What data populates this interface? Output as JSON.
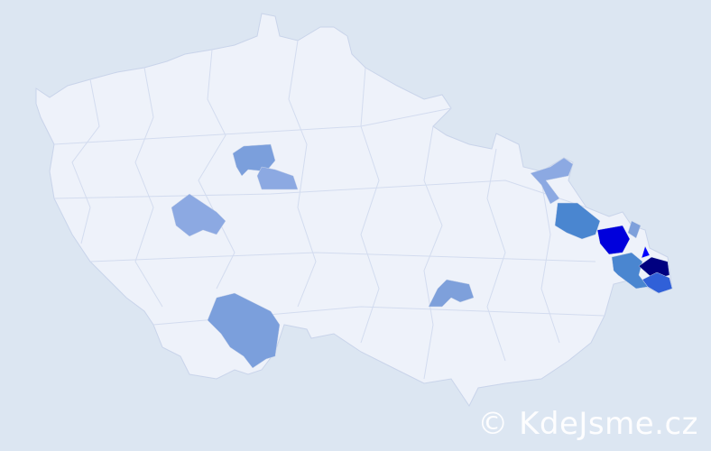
{
  "watermark": "© KdeJsme.cz",
  "colors": {
    "background": "#dce6f2",
    "land": "#eef2fa",
    "border": "#c9d4ea",
    "scale_light": "#8ca9e2",
    "scale_mid": "#4a86d0",
    "scale_strong": "#0000dc",
    "scale_max": "#000080"
  },
  "regions": [
    {
      "name": "",
      "level": "light",
      "color": "#7b9fdc"
    },
    {
      "name": "",
      "level": "light",
      "color": "#8ca9e2"
    },
    {
      "name": "",
      "level": "light",
      "color": "#8ca9e2"
    },
    {
      "name": "",
      "level": "light",
      "color": "#7b9fdc"
    },
    {
      "name": "",
      "level": "light",
      "color": "#7ea0db"
    },
    {
      "name": "",
      "level": "light",
      "color": "#8ca9e2"
    },
    {
      "name": "",
      "level": "mid",
      "color": "#4a86d0"
    },
    {
      "name": "",
      "level": "strong",
      "color": "#0000dc"
    },
    {
      "name": "",
      "level": "light",
      "color": "#7ea0db"
    },
    {
      "name": "",
      "level": "mid",
      "color": "#4a86d0"
    },
    {
      "name": "",
      "level": "strong",
      "color": "#0000ff"
    },
    {
      "name": "",
      "level": "max",
      "color": "#000080"
    },
    {
      "name": "",
      "level": "mid-strong",
      "color": "#3060d8"
    }
  ]
}
